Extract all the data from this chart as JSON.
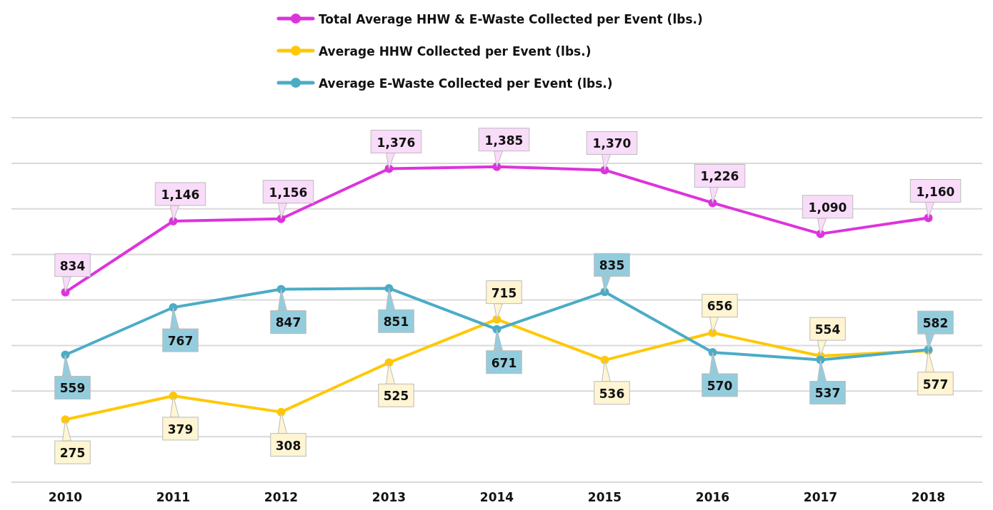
{
  "chart_data": {
    "type": "line",
    "categories": [
      "2010",
      "2011",
      "2012",
      "2013",
      "2014",
      "2015",
      "2016",
      "2017",
      "2018"
    ],
    "series": [
      {
        "name": "Total Average HHW & E-Waste Collected per Event (lbs.)",
        "color": "#dd33dd",
        "values": [
          834,
          1146,
          1156,
          1376,
          1385,
          1370,
          1226,
          1090,
          1160
        ],
        "value_labels": [
          "834",
          "1,146",
          "1,156",
          "1,376",
          "1,385",
          "1,370",
          "1,226",
          "1,090",
          "1,160"
        ]
      },
      {
        "name": "Average HHW Collected per Event (lbs.)",
        "color": "#ffc805",
        "values": [
          275,
          379,
          308,
          525,
          715,
          536,
          656,
          554,
          577
        ],
        "value_labels": [
          "275",
          "379",
          "308",
          "525",
          "715",
          "536",
          "656",
          "554",
          "577"
        ]
      },
      {
        "name": "Average E-Waste Collected per Event (lbs.)",
        "color": "#4bacc6",
        "values": [
          559,
          767,
          847,
          851,
          671,
          835,
          570,
          537,
          582
        ],
        "value_labels": [
          "559",
          "767",
          "847",
          "851",
          "671",
          "835",
          "570",
          "537",
          "582"
        ]
      }
    ],
    "ylim": [
      0,
      1600
    ],
    "yticks": [
      {
        "value": 0,
        "label": null
      },
      {
        "value": 200,
        "label": null
      },
      {
        "value": 400,
        "label": null
      },
      {
        "value": 600,
        "label": null
      },
      {
        "value": 800,
        "label": null
      },
      {
        "value": 1000,
        "label": null
      },
      {
        "value": 1200,
        "label": null
      },
      {
        "value": 1400,
        "label": null
      },
      {
        "value": 1600,
        "label": null
      }
    ],
    "tick_labels": "x",
    "grid": "y",
    "legend": "top",
    "marker": "circle",
    "line_style": "solid"
  }
}
